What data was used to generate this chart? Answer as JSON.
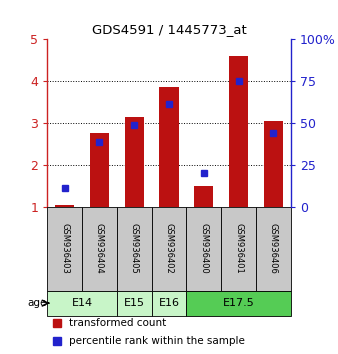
{
  "title": "GDS4591 / 1445773_at",
  "samples": [
    "GSM936403",
    "GSM936404",
    "GSM936405",
    "GSM936402",
    "GSM936400",
    "GSM936401",
    "GSM936406"
  ],
  "red_bars": [
    1.05,
    2.75,
    3.15,
    3.85,
    1.5,
    4.6,
    3.05
  ],
  "blue_markers": [
    1.45,
    2.55,
    2.95,
    3.45,
    1.8,
    4.0,
    2.75
  ],
  "age_groups": [
    {
      "label": "E14",
      "samples": [
        0,
        1
      ],
      "color": "#c8f5c8"
    },
    {
      "label": "E15",
      "samples": [
        2
      ],
      "color": "#c8f5c8"
    },
    {
      "label": "E16",
      "samples": [
        3
      ],
      "color": "#c8f5c8"
    },
    {
      "label": "E17.5",
      "samples": [
        4,
        5,
        6
      ],
      "color": "#55cc55"
    }
  ],
  "ylim_left": [
    1,
    5
  ],
  "ylim_right": [
    0,
    100
  ],
  "yticks_left": [
    1,
    2,
    3,
    4,
    5
  ],
  "yticks_right": [
    0,
    25,
    50,
    75,
    100
  ],
  "ytick_labels_right": [
    "0",
    "25",
    "50",
    "75",
    "100%"
  ],
  "bar_color": "#bb1111",
  "marker_color": "#2222cc",
  "bar_width": 0.55,
  "background_color": "#ffffff",
  "label_bg_color": "#c8c8c8",
  "legend_items": [
    {
      "color": "#bb1111",
      "label": "transformed count"
    },
    {
      "color": "#2222cc",
      "label": "percentile rank within the sample"
    }
  ]
}
